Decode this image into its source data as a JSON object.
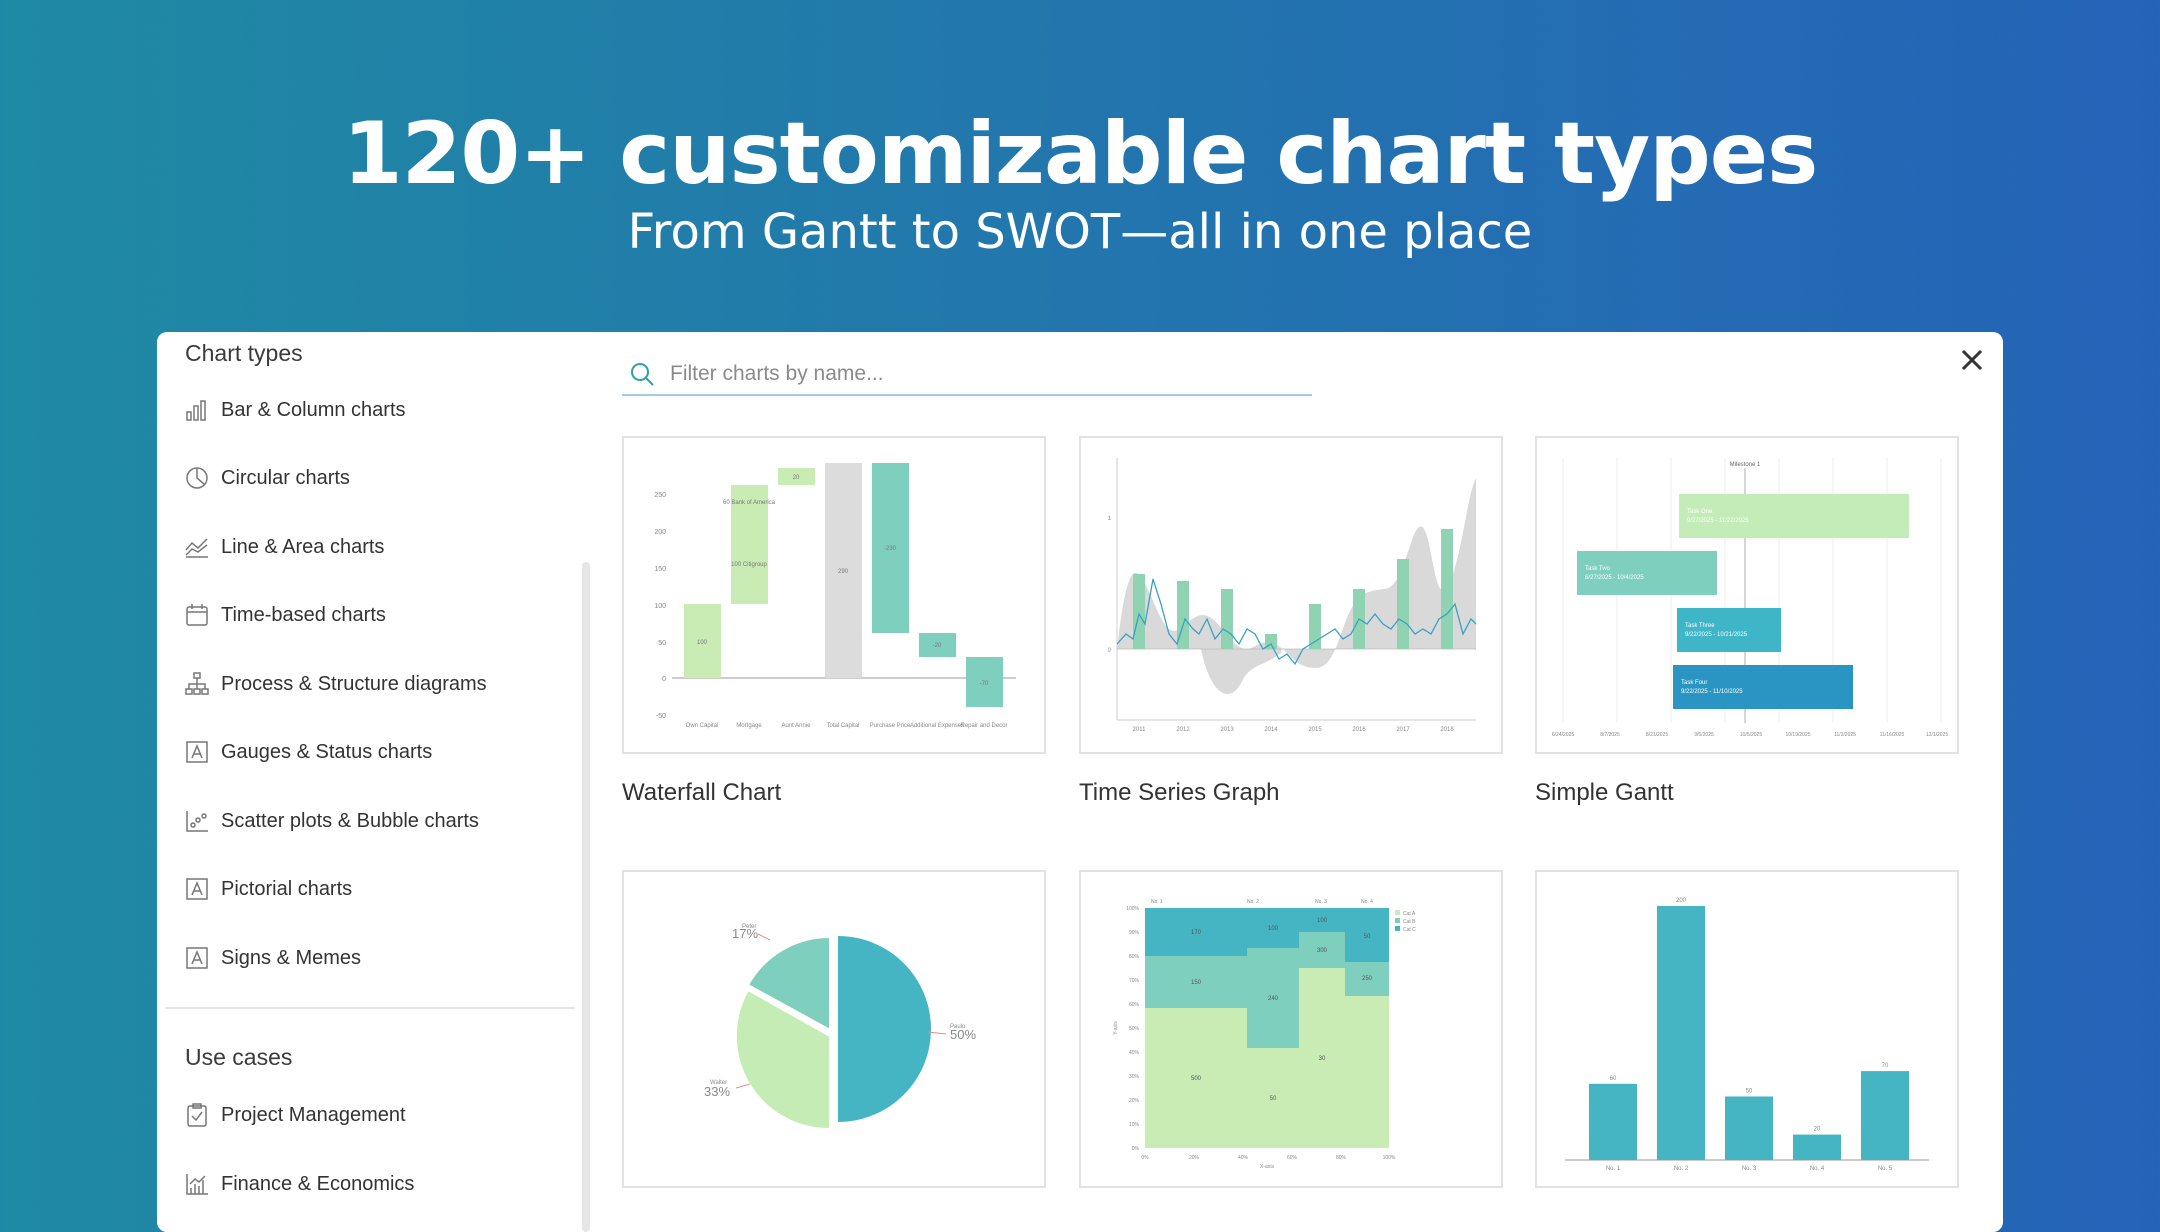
{
  "hero": {
    "title": "120+ customizable chart types",
    "subtitle": "From Gantt to SWOT—all in one place"
  },
  "sidebar": {
    "chart_types_title": "Chart types",
    "items": [
      {
        "label": "Bar & Column charts",
        "icon": "bar-chart-icon"
      },
      {
        "label": "Circular charts",
        "icon": "pie-chart-icon"
      },
      {
        "label": "Line & Area charts",
        "icon": "line-chart-icon"
      },
      {
        "label": "Time-based charts",
        "icon": "calendar-icon"
      },
      {
        "label": "Process & Structure diagrams",
        "icon": "hierarchy-icon"
      },
      {
        "label": "Gauges & Status charts",
        "icon": "text-box-icon"
      },
      {
        "label": "Scatter plots & Bubble charts",
        "icon": "scatter-icon"
      },
      {
        "label": "Pictorial charts",
        "icon": "text-box-icon"
      },
      {
        "label": "Signs & Memes",
        "icon": "text-box-icon"
      }
    ],
    "use_cases_title": "Use cases",
    "use_cases": [
      {
        "label": "Project Management",
        "icon": "clipboard-icon"
      },
      {
        "label": "Finance & Economics",
        "icon": "finance-chart-icon"
      }
    ]
  },
  "search": {
    "placeholder": "Filter charts by name...",
    "icon": "search-icon"
  },
  "close_icon": "close-icon",
  "accent_color": "#2a9fb0",
  "cards": [
    {
      "label": "Waterfall Chart"
    },
    {
      "label": "Time Series Graph"
    },
    {
      "label": "Simple Gantt"
    },
    {
      "label": ""
    },
    {
      "label": ""
    },
    {
      "label": ""
    }
  ],
  "waterfall": {
    "yticks": [
      "250",
      "200",
      "150",
      "100",
      "50",
      "0",
      "-50"
    ],
    "categories": [
      "Own Capital",
      "Mortgage",
      "Aunt Annie",
      "Total Capital",
      "Purchase Price",
      "Additional Expenses",
      "Repair and Decor"
    ],
    "bar_labels": [
      "100",
      "100 Citigroup",
      "60 Bank of America",
      "20",
      "290",
      "-230",
      "-20",
      "-70"
    ]
  },
  "timeseries": {
    "xticks": [
      "2011",
      "2012",
      "2013",
      "2014",
      "2015",
      "2016",
      "2017",
      "2018"
    ],
    "yticks": [
      "1",
      "0"
    ]
  },
  "gantt": {
    "milestone": "Milestone 1",
    "tasks": [
      {
        "name": "Task One",
        "dates": "9/27/2025 - 11/22/2025"
      },
      {
        "name": "Task Two",
        "dates": "6/27/2025 - 10/4/2025"
      },
      {
        "name": "Task Three",
        "dates": "9/22/2025 - 10/21/2025"
      },
      {
        "name": "Task Four",
        "dates": "9/22/2025 - 11/10/2025"
      }
    ],
    "xticks": [
      "6/24/2025",
      "8/7/2025",
      "8/21/2025",
      "9/6/2025",
      "10/5/2025",
      "10/19/2025",
      "11/2/2025",
      "11/16/2025",
      "12/1/2025"
    ]
  },
  "pie": {
    "slices": [
      {
        "name": "Paulo",
        "percent": "50%"
      },
      {
        "name": "Walter",
        "percent": "33%"
      },
      {
        "name": "Peter",
        "percent": "17%"
      }
    ]
  },
  "mekko": {
    "columns": [
      "No. 1",
      "No. 2",
      "No. 3",
      "No. 4"
    ],
    "legend": [
      "Cat A",
      "Cat B",
      "Cat C"
    ],
    "yticks": [
      "100%",
      "90%",
      "80%",
      "70%",
      "60%",
      "50%",
      "40%",
      "30%",
      "20%",
      "10%",
      "0%"
    ],
    "xticks": [
      "0%",
      "20%",
      "40%",
      "60%",
      "80%",
      "100%"
    ],
    "values": [
      "170",
      "150",
      "500",
      "100",
      "240",
      "50",
      "100",
      "300",
      "30",
      "50",
      "250"
    ],
    "xlabel": "X-axis",
    "ylabel": "Y-axis"
  },
  "barchart": {
    "categories": [
      "No. 1",
      "No. 2",
      "No. 3",
      "No. 4",
      "No. 5"
    ],
    "values": [
      60,
      200,
      50,
      20,
      70
    ],
    "labels": [
      "60",
      "200",
      "50",
      "20",
      "70"
    ],
    "color": "#45b5c4"
  }
}
